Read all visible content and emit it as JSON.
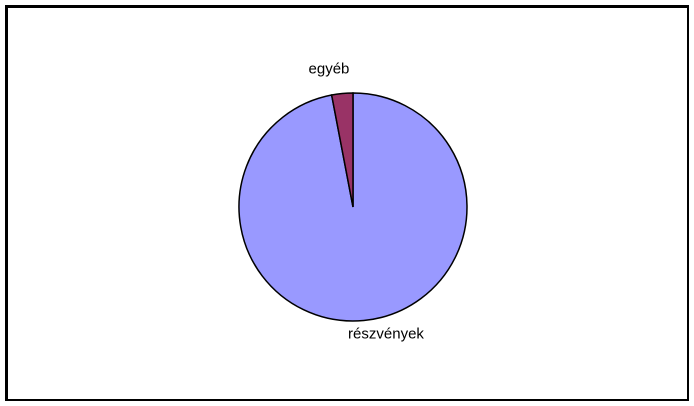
{
  "chart_data": {
    "type": "pie",
    "title": "",
    "slices": [
      {
        "label": "részvények",
        "value": 97,
        "color": "#9999ff"
      },
      {
        "label": "egyéb",
        "value": 3,
        "color": "#993366"
      }
    ],
    "legend": "none",
    "labels_position": "outside"
  }
}
